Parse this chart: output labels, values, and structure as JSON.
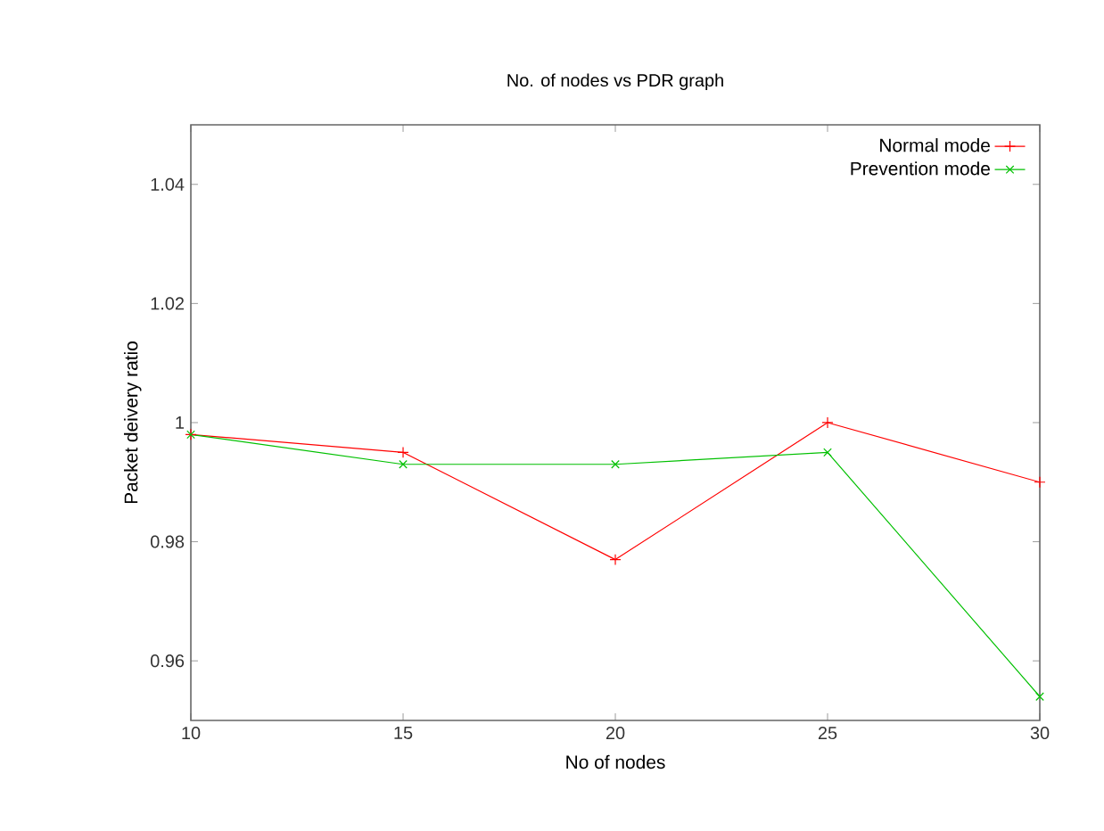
{
  "chart_data": {
    "type": "line",
    "title": "No. of nodes vs PDR graph",
    "xlabel": "No of nodes",
    "ylabel": "Packet deivery ratio",
    "x": [
      10,
      15,
      20,
      25,
      30
    ],
    "series": [
      {
        "name": "Normal mode",
        "color": "#ff0000",
        "marker": "plus",
        "values": [
          0.998,
          0.995,
          0.977,
          1.0,
          0.99
        ]
      },
      {
        "name": "Prevention mode",
        "color": "#00c000",
        "marker": "cross",
        "values": [
          0.998,
          0.993,
          0.993,
          0.995,
          0.954
        ]
      }
    ],
    "xlim": [
      10,
      30
    ],
    "ylim": [
      0.95,
      1.05
    ],
    "xticks": [
      10,
      15,
      20,
      25,
      30
    ],
    "yticks": [
      0.96,
      0.98,
      1,
      1.02,
      1.04
    ],
    "grid": false,
    "legend": "top right"
  }
}
